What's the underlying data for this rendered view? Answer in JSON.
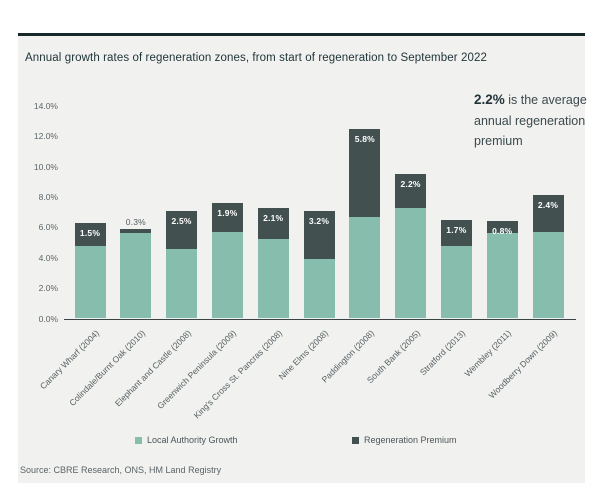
{
  "title": "Annual growth rates of regeneration zones, from start of regeneration to September 2022",
  "annotation": {
    "highlight": "2.2%",
    "text": " is the average annual regeneration premium"
  },
  "source": "Source: CBRE Research, ONS, HM Land Registry",
  "colors": {
    "local_authority_growth": "#86bdac",
    "regeneration_premium": "#42514f",
    "panel_background": "#f1f1ef",
    "top_rule": "#16282a"
  },
  "chart_data": {
    "type": "bar",
    "stacked": true,
    "title": "Annual growth rates of regeneration zones, from start of regeneration to September 2022",
    "categories": [
      "Canary Wharf (2004)",
      "Colindale/Burnt Oak (2010)",
      "Elephant and Castle (2008)",
      "Greenwich Peninsula (2009)",
      "King's Cross St. Pancras (2008)",
      "Nine Elms (2008)",
      "Paddington (2008)",
      "South Bank (2005)",
      "Stratford (2013)",
      "Wembley (2011)",
      "Woodberry Down (2009)"
    ],
    "series": [
      {
        "name": "Local Authority Growth",
        "values": [
          4.8,
          5.6,
          4.6,
          5.7,
          5.2,
          3.9,
          6.7,
          7.3,
          4.8,
          5.6,
          5.7
        ]
      },
      {
        "name": "Regeneration Premium",
        "values": [
          1.5,
          0.3,
          2.5,
          1.9,
          2.1,
          3.2,
          5.8,
          2.2,
          1.7,
          0.8,
          2.4
        ]
      }
    ],
    "premium_labels": [
      "1.5%",
      "0.3%",
      "2.5%",
      "1.9%",
      "2.1%",
      "3.2%",
      "5.8%",
      "2.2%",
      "1.7%",
      "0.8%",
      "2.4%"
    ],
    "y_ticks": [
      "0.0%",
      "2.0%",
      "4.0%",
      "6.0%",
      "8.0%",
      "10.0%",
      "12.0%",
      "14.0%"
    ],
    "xlabel": "",
    "ylabel": "",
    "ylim": [
      0,
      14
    ],
    "grid": false,
    "legend_position": "bottom"
  }
}
